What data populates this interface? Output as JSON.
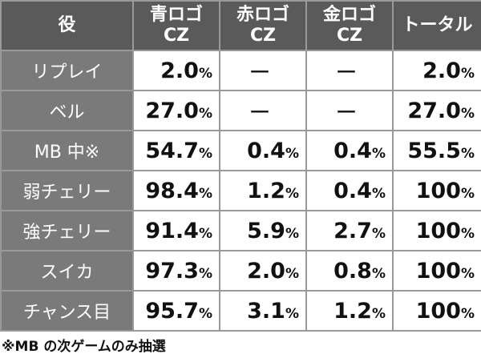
{
  "table": {
    "header": [
      [
        "役"
      ],
      [
        "青ロゴ",
        "CZ"
      ],
      [
        "赤ロゴ",
        "CZ"
      ],
      [
        "金ロゴ",
        "CZ"
      ],
      [
        "トータル"
      ]
    ],
    "rows": [
      [
        "リプレイ",
        "2.0%",
        "ー",
        "ー",
        "2.0%"
      ],
      [
        "ベル",
        "27.0%",
        "ー",
        "ー",
        "27.0%"
      ],
      [
        "MB 中※",
        "54.7%",
        "0.4%",
        "0.4%",
        "55.5%"
      ],
      [
        "弱チェリー",
        "98.4%",
        "1.2%",
        "0.4%",
        "100%"
      ],
      [
        "強チェリー",
        "91.4%",
        "5.9%",
        "2.7%",
        "100%"
      ],
      [
        "スイカ",
        "97.3%",
        "2.0%",
        "0.8%",
        "100%"
      ],
      [
        "チャンス目",
        "95.7%",
        "3.1%",
        "1.2%",
        "100%"
      ]
    ]
  },
  "footnote": "※MB の次ゲームのみ抽選"
}
